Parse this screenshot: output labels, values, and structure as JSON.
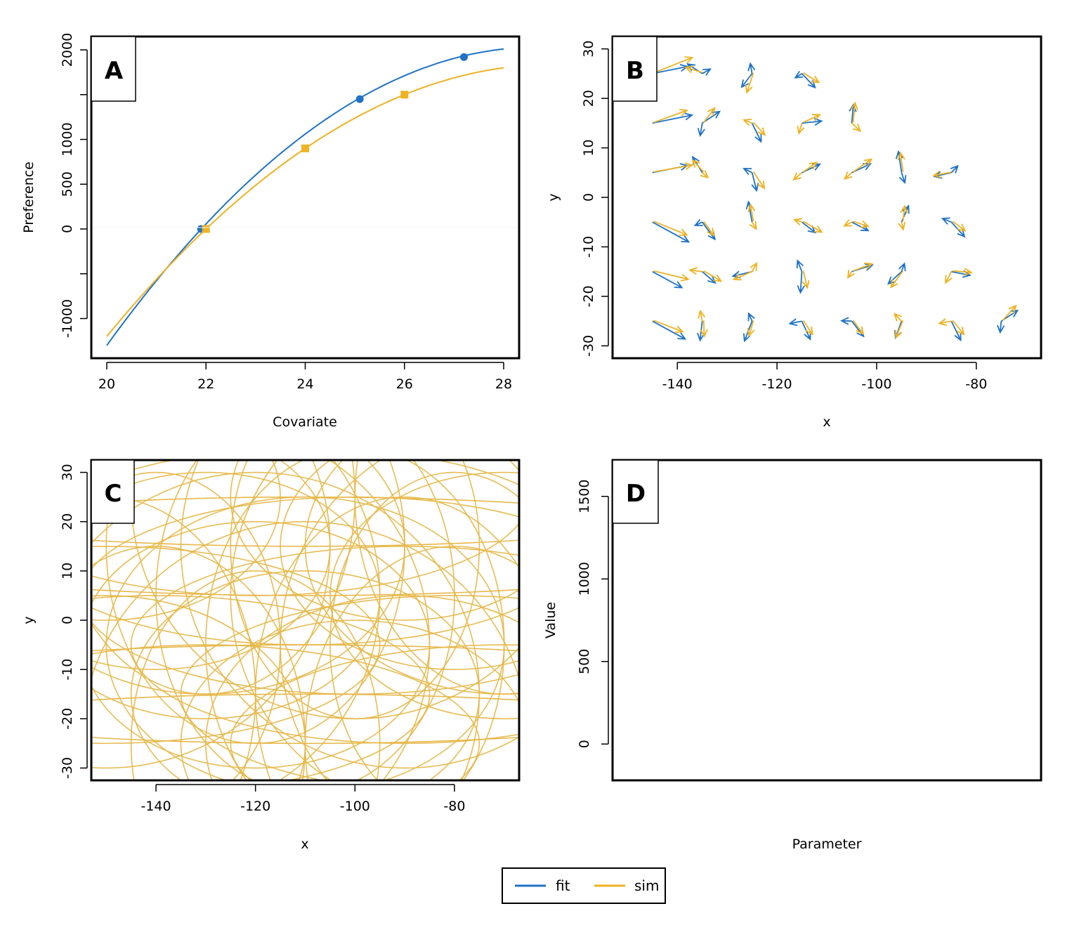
{
  "colors": {
    "fit": "#1f72c6",
    "sim": "#eeb223",
    "ellipse": "#e6b84a"
  },
  "legend": {
    "items": [
      {
        "key": "fit",
        "label": "fit"
      },
      {
        "key": "sim",
        "label": "sim"
      }
    ],
    "placement": "bottom-center"
  },
  "chart_data": [
    {
      "panel": "A",
      "type": "line",
      "xlabel": "Covariate",
      "ylabel": "Preference",
      "xlim": [
        20,
        28
      ],
      "ylim": [
        -1300,
        2150
      ],
      "xticks": [
        "20",
        "22",
        "24",
        "26",
        "28"
      ],
      "yticks": [
        {
          "value": -1000,
          "label": "-1000"
        },
        {
          "value": -500,
          "label": ""
        },
        {
          "value": 0,
          "label": "0"
        },
        {
          "value": 500,
          "label": "500"
        },
        {
          "value": 1000,
          "label": "1000"
        },
        {
          "value": 1500,
          "label": ""
        },
        {
          "value": 2000,
          "label": "2000"
        }
      ],
      "series": [
        {
          "name": "fit",
          "x": [
            20,
            22,
            24,
            26,
            28
          ],
          "y": [
            -1300,
            0,
            1060,
            1700,
            2010
          ],
          "points": {
            "x": [
              21.9,
              25.1,
              27.2
            ],
            "y": [
              0,
              1450,
              1920
            ],
            "marker": "circle"
          }
        },
        {
          "name": "sim",
          "x": [
            20,
            22,
            24,
            26,
            28
          ],
          "y": [
            -1200,
            0,
            900,
            1500,
            1800
          ],
          "points": {
            "x": [
              22.0,
              24.0,
              26.0
            ],
            "y": [
              0,
              900,
              1500
            ],
            "marker": "square"
          }
        }
      ]
    },
    {
      "panel": "B",
      "type": "scatter",
      "xlabel": "x",
      "ylabel": "y",
      "xlim": [
        -153,
        -67
      ],
      "ylim": [
        -32.5,
        32.5
      ],
      "xticks": [
        "-140",
        "-120",
        "-100",
        "-80"
      ],
      "yticks": [
        "-30",
        "-20",
        "-10",
        "0",
        "10",
        "20",
        "30"
      ],
      "rows_y": [
        -25,
        -15,
        -5,
        5,
        15,
        25
      ],
      "cols_x": [
        -145,
        -135,
        -125,
        -115,
        -105,
        -95,
        -85,
        -75
      ]
    },
    {
      "panel": "C",
      "type": "scatter",
      "xlabel": "x",
      "ylabel": "y",
      "xlim": [
        -153,
        -67
      ],
      "ylim": [
        -32.5,
        32.5
      ],
      "xticks": [
        "-140",
        "-120",
        "-100",
        "-80"
      ],
      "yticks": [
        "-30",
        "-20",
        "-10",
        "0",
        "10",
        "20",
        "30"
      ]
    },
    {
      "panel": "D",
      "type": "scatter",
      "xlabel": "Parameter",
      "ylabel": "Value",
      "ylim": [
        -220,
        1720
      ],
      "yticks": [
        "0",
        "500",
        "1000",
        "1500"
      ]
    }
  ]
}
